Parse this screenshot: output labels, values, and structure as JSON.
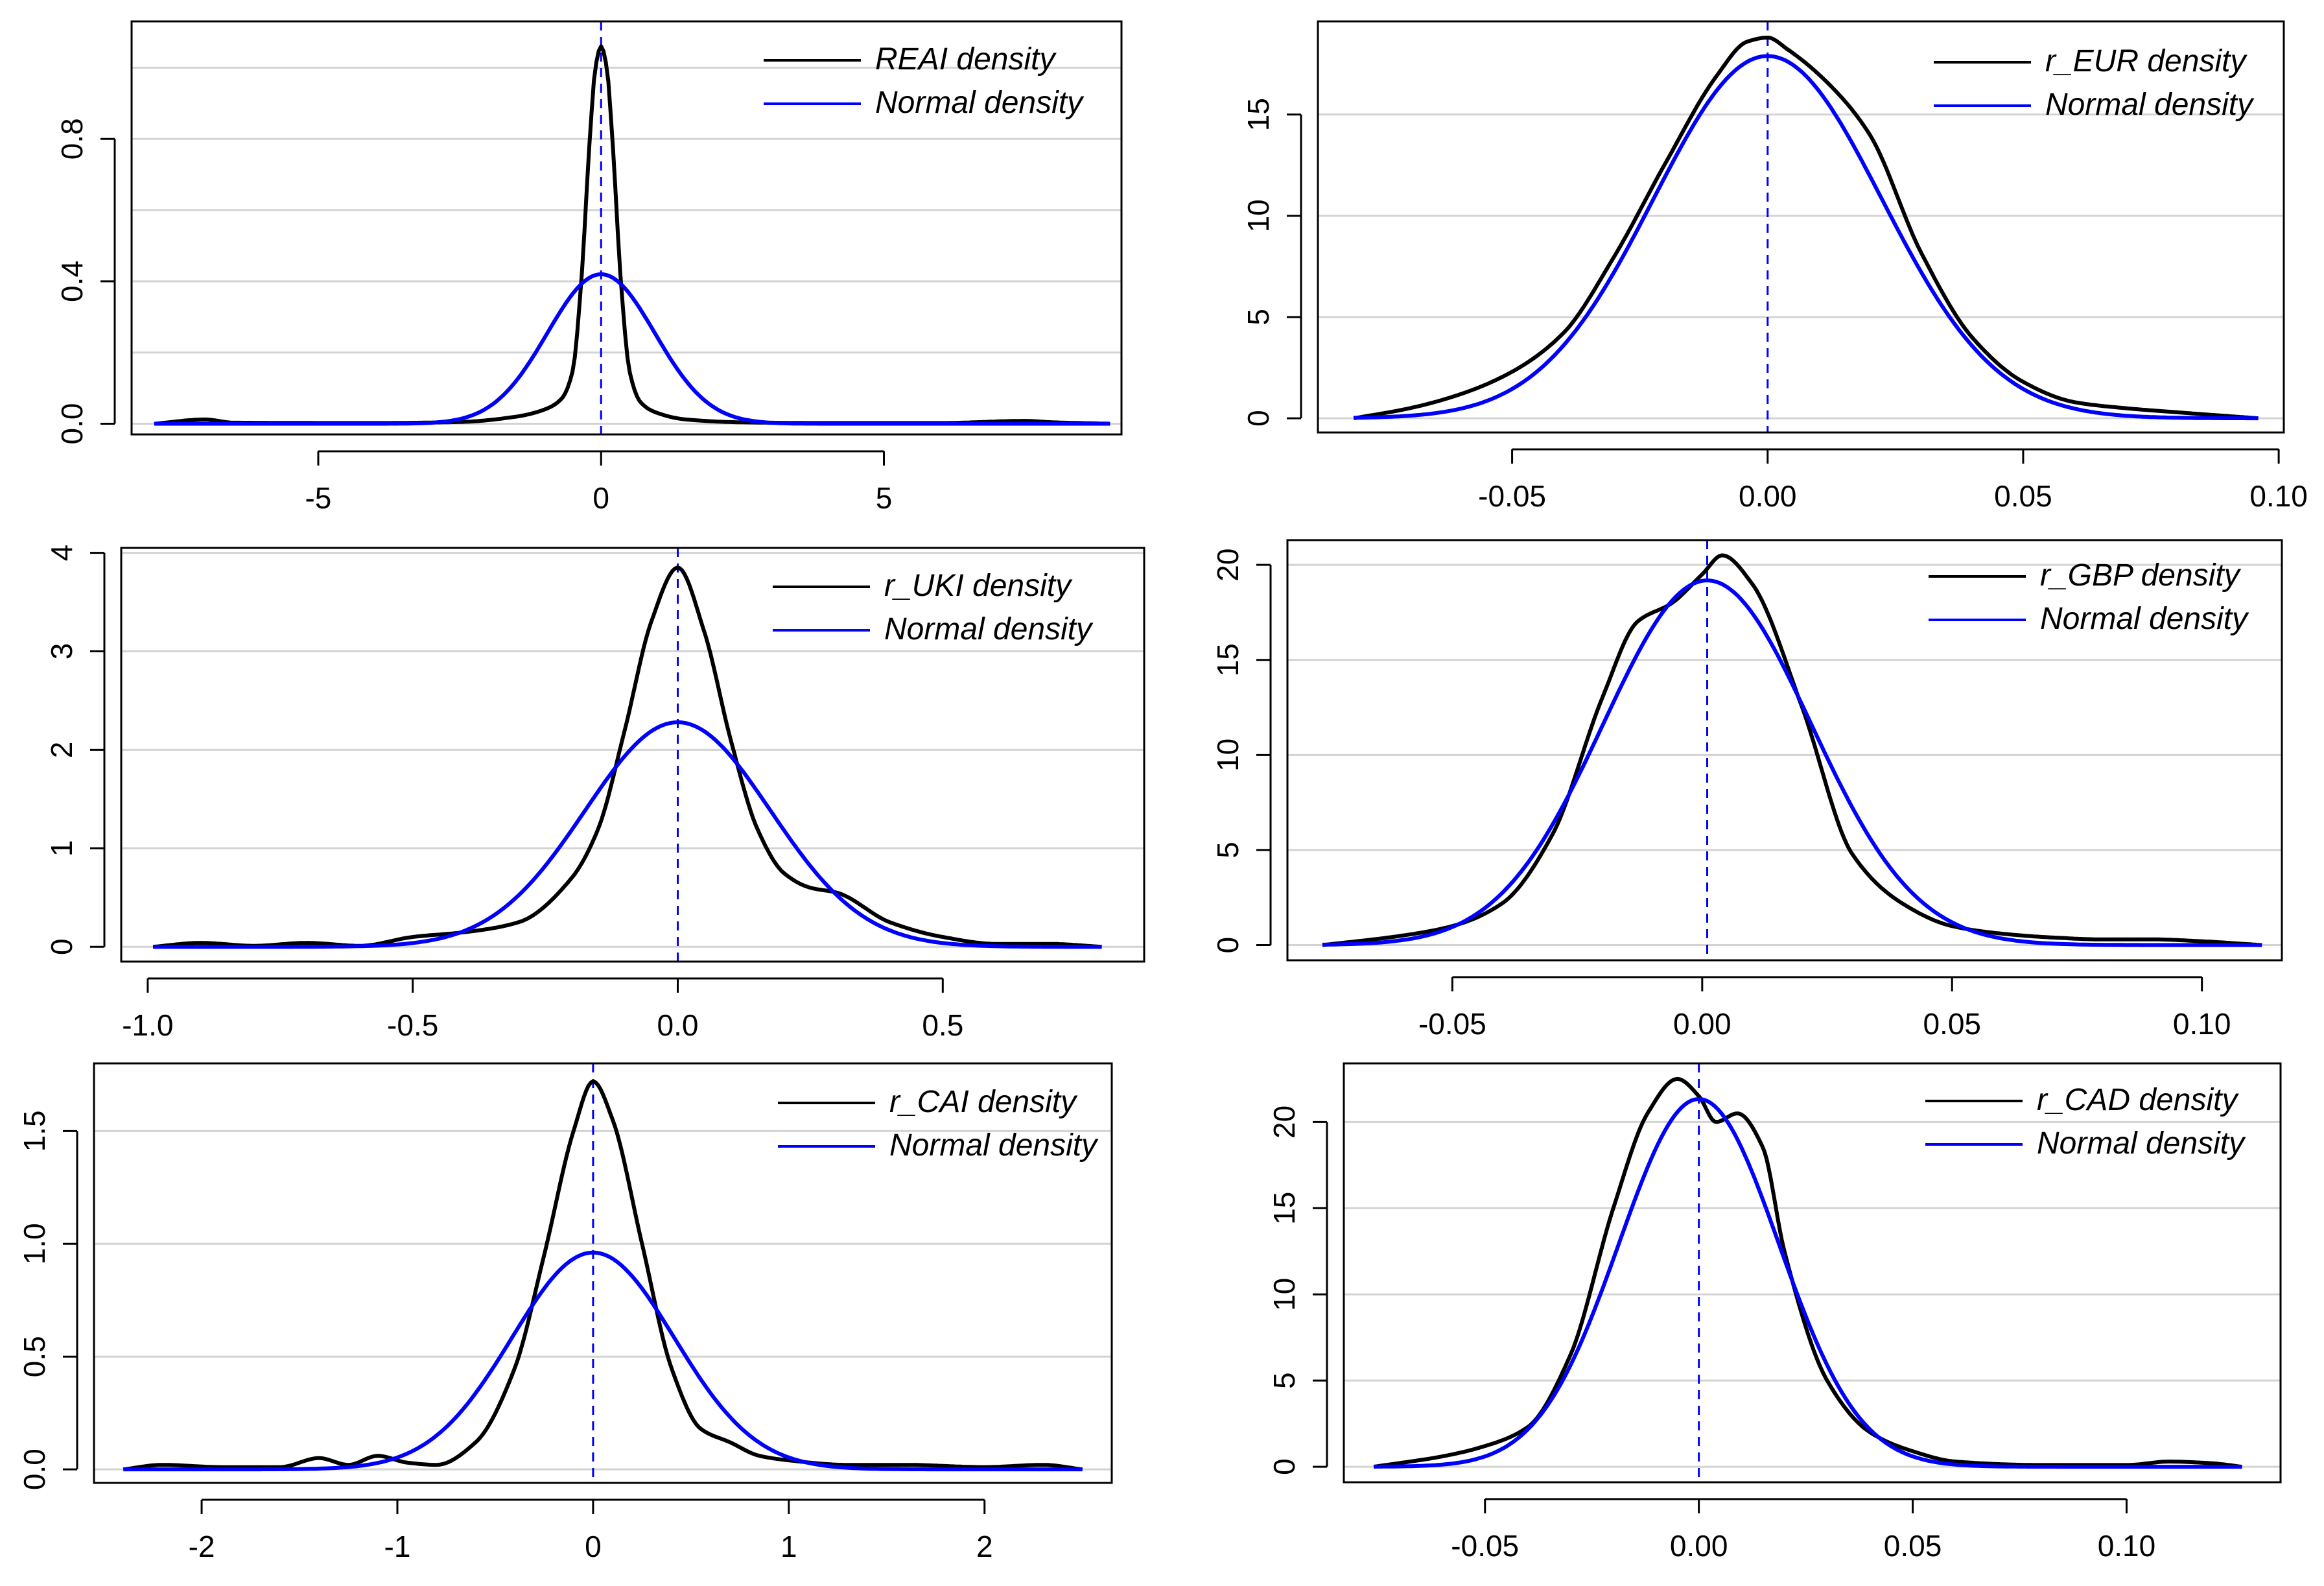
{
  "figure": {
    "background": "#ffffff"
  },
  "colors": {
    "density": "#000000",
    "normal": "#0000ff",
    "grid": "#d3d3d3",
    "frame": "#000000"
  },
  "chart_data": [
    {
      "id": "reai",
      "type": "line",
      "title": "",
      "xlim": [
        -8.3,
        9.2
      ],
      "ylim": [
        -0.03,
        1.13
      ],
      "xticks": [
        -5,
        0,
        5
      ],
      "xtick_labels": [
        "-5",
        "0",
        "5"
      ],
      "yticks": [
        0.0,
        0.4,
        0.8
      ],
      "ytick_labels": [
        "0.0",
        "0.4",
        "0.8"
      ],
      "grid_y": [
        0.0,
        0.2,
        0.4,
        0.6,
        0.8,
        1.0
      ],
      "mean_line": 0.0,
      "legend": [
        "REAI density",
        "Normal density"
      ],
      "series": [
        {
          "name": "REAI density",
          "x": [
            -7.9,
            -7.0,
            -6.5,
            -4,
            -2.5,
            -1.5,
            -1.0,
            -0.7,
            -0.5,
            -0.35,
            -0.2,
            -0.1,
            0,
            0.1,
            0.2,
            0.35,
            0.5,
            0.7,
            1.0,
            1.5,
            2.5,
            4,
            6,
            7.5,
            8,
            9
          ],
          "y": [
            0.0,
            0.012,
            0.003,
            0.002,
            0.005,
            0.02,
            0.04,
            0.07,
            0.15,
            0.4,
            0.8,
            1.0,
            1.06,
            1.0,
            0.8,
            0.4,
            0.15,
            0.06,
            0.03,
            0.012,
            0.004,
            0.002,
            0.002,
            0.008,
            0.004,
            0.0
          ]
        },
        {
          "name": "Normal density",
          "type": "normal",
          "mean": 0.0,
          "sd": 0.95,
          "xrange": [
            -7.9,
            9.0
          ]
        }
      ]
    },
    {
      "id": "r_eur",
      "type": "line",
      "title": "",
      "xlim": [
        -0.088,
        0.101
      ],
      "ylim": [
        -0.7,
        19.6
      ],
      "xticks": [
        -0.05,
        0.0,
        0.05,
        0.1
      ],
      "xtick_labels": [
        "-0.05",
        "0.00",
        "0.05",
        "0.10"
      ],
      "yticks": [
        0,
        5,
        10,
        15
      ],
      "ytick_labels": [
        "0",
        "5",
        "10",
        "15"
      ],
      "grid_y": [
        0,
        5,
        10,
        15
      ],
      "mean_line": 0.0,
      "legend": [
        "r_EUR density",
        "Normal density"
      ],
      "series": [
        {
          "name": "r_EUR density",
          "x": [
            -0.081,
            -0.07,
            -0.06,
            -0.05,
            -0.04,
            -0.03,
            -0.02,
            -0.01,
            -0.004,
            0.0,
            0.004,
            0.012,
            0.02,
            0.03,
            0.04,
            0.05,
            0.06,
            0.07,
            0.08,
            0.096
          ],
          "y": [
            0.0,
            0.5,
            1.2,
            2.3,
            4.2,
            8.0,
            12.6,
            16.9,
            18.6,
            18.8,
            18.2,
            16.5,
            14.0,
            8.2,
            4.0,
            1.8,
            0.8,
            0.5,
            0.3,
            0.0
          ]
        },
        {
          "name": "Normal density",
          "type": "normal",
          "mean": 0.0,
          "sd": 0.0223,
          "xrange": [
            -0.081,
            0.096
          ]
        }
      ]
    },
    {
      "id": "r_uki",
      "type": "line",
      "title": "",
      "xlim": [
        -1.05,
        0.88
      ],
      "ylim": [
        -0.15,
        4.05
      ],
      "xticks": [
        -1.0,
        -0.5,
        0.0,
        0.5
      ],
      "xtick_labels": [
        "-1.0",
        "-0.5",
        "0.0",
        "0.5"
      ],
      "yticks": [
        0,
        1,
        2,
        3,
        4
      ],
      "ytick_labels": [
        "0",
        "1",
        "2",
        "3",
        "4"
      ],
      "grid_y": [
        0,
        1,
        2,
        3,
        4
      ],
      "mean_line": 0.0,
      "legend": [
        "r_UKI density",
        "Normal density"
      ],
      "series": [
        {
          "name": "r_UKI density",
          "x": [
            -0.99,
            -0.9,
            -0.8,
            -0.7,
            -0.6,
            -0.5,
            -0.4,
            -0.3,
            -0.2,
            -0.15,
            -0.1,
            -0.05,
            0,
            0.05,
            0.1,
            0.15,
            0.2,
            0.25,
            0.3,
            0.4,
            0.5,
            0.6,
            0.7,
            0.8
          ],
          "y": [
            0.0,
            0.04,
            0.01,
            0.04,
            0.01,
            0.1,
            0.15,
            0.25,
            0.7,
            1.2,
            2.2,
            3.3,
            3.85,
            3.2,
            2.1,
            1.2,
            0.75,
            0.6,
            0.55,
            0.25,
            0.1,
            0.03,
            0.03,
            0.0
          ]
        },
        {
          "name": "Normal density",
          "type": "normal",
          "mean": 0.0,
          "sd": 0.175,
          "xrange": [
            -0.99,
            0.8
          ]
        }
      ]
    },
    {
      "id": "r_gbp",
      "type": "line",
      "title": "",
      "xlim": [
        -0.083,
        0.116
      ],
      "ylim": [
        -0.8,
        21.3
      ],
      "xticks": [
        -0.05,
        0.0,
        0.05,
        0.1
      ],
      "xtick_labels": [
        "-0.05",
        "0.00",
        "0.05",
        "0.10"
      ],
      "yticks": [
        0,
        5,
        10,
        15,
        20
      ],
      "ytick_labels": [
        "0",
        "5",
        "10",
        "15",
        "20"
      ],
      "grid_y": [
        0,
        5,
        10,
        15,
        20
      ],
      "mean_line": 0.001,
      "legend": [
        "r_GBP density",
        "Normal density"
      ],
      "series": [
        {
          "name": "r_GBP density",
          "x": [
            -0.076,
            -0.06,
            -0.05,
            -0.04,
            -0.03,
            -0.02,
            -0.013,
            -0.006,
            0.0,
            0.004,
            0.01,
            0.02,
            0.03,
            0.04,
            0.05,
            0.06,
            0.07,
            0.08,
            0.09,
            0.1,
            0.112
          ],
          "y": [
            0.0,
            0.5,
            1.0,
            2.2,
            5.8,
            13.0,
            17.0,
            18.0,
            19.5,
            20.5,
            19.0,
            12.5,
            4.8,
            2.2,
            1.0,
            0.6,
            0.4,
            0.3,
            0.3,
            0.2,
            0.0
          ]
        },
        {
          "name": "Normal density",
          "type": "normal",
          "mean": 0.001,
          "sd": 0.0208,
          "xrange": [
            -0.076,
            0.112
          ]
        }
      ]
    },
    {
      "id": "r_cai",
      "type": "line",
      "title": "",
      "xlim": [
        -2.55,
        2.65
      ],
      "ylim": [
        -0.06,
        1.8
      ],
      "xticks": [
        -2,
        -1,
        0,
        1,
        2
      ],
      "xtick_labels": [
        "-2",
        "-1",
        "0",
        "1",
        "2"
      ],
      "yticks": [
        0.0,
        0.5,
        1.0,
        1.5
      ],
      "ytick_labels": [
        "0.0",
        "0.5",
        "1.0",
        "1.5"
      ],
      "grid_y": [
        0.0,
        0.5,
        1.0,
        1.5
      ],
      "mean_line": 0.0,
      "legend": [
        "r_CAI density",
        "Normal density"
      ],
      "series": [
        {
          "name": "r_CAI density",
          "x": [
            -2.4,
            -2.2,
            -1.9,
            -1.6,
            -1.4,
            -1.25,
            -1.1,
            -0.95,
            -0.8,
            -0.6,
            -0.4,
            -0.25,
            -0.1,
            0,
            0.1,
            0.25,
            0.4,
            0.55,
            0.7,
            0.85,
            1.0,
            1.3,
            1.6,
            2.0,
            2.3,
            2.5
          ],
          "y": [
            0.0,
            0.02,
            0.01,
            0.01,
            0.05,
            0.02,
            0.06,
            0.03,
            0.02,
            0.12,
            0.45,
            0.95,
            1.5,
            1.72,
            1.55,
            1.0,
            0.45,
            0.18,
            0.12,
            0.06,
            0.04,
            0.02,
            0.02,
            0.01,
            0.02,
            0.0
          ]
        },
        {
          "name": "Normal density",
          "type": "normal",
          "mean": 0.0,
          "sd": 0.415,
          "xrange": [
            -2.4,
            2.5
          ]
        }
      ]
    },
    {
      "id": "r_cad",
      "type": "line",
      "title": "",
      "xlim": [
        -0.083,
        0.136
      ],
      "ylim": [
        -0.9,
        23.4
      ],
      "xticks": [
        -0.05,
        0.0,
        0.05,
        0.1
      ],
      "xtick_labels": [
        "-0.05",
        "0.00",
        "0.05",
        "0.10"
      ],
      "yticks": [
        0,
        5,
        10,
        15,
        20
      ],
      "ytick_labels": [
        "0",
        "5",
        "10",
        "15",
        "20"
      ],
      "grid_y": [
        0,
        5,
        10,
        15,
        20
      ],
      "mean_line": 0.0,
      "legend": [
        "r_CAD density",
        "Normal density"
      ],
      "series": [
        {
          "name": "r_CAD density",
          "x": [
            -0.076,
            -0.06,
            -0.05,
            -0.04,
            -0.03,
            -0.02,
            -0.012,
            -0.005,
            0.0,
            0.004,
            0.009,
            0.015,
            0.02,
            0.03,
            0.04,
            0.05,
            0.06,
            0.08,
            0.1,
            0.11,
            0.12,
            0.127
          ],
          "y": [
            0.0,
            0.6,
            1.2,
            2.3,
            6.5,
            15.0,
            20.5,
            22.5,
            21.5,
            20.0,
            20.5,
            18.5,
            12.5,
            5.0,
            2.0,
            0.9,
            0.3,
            0.1,
            0.1,
            0.3,
            0.2,
            0.0
          ]
        },
        {
          "name": "Normal density",
          "type": "normal",
          "mean": 0.0,
          "sd": 0.0187,
          "xrange": [
            -0.076,
            0.127
          ]
        }
      ]
    }
  ]
}
